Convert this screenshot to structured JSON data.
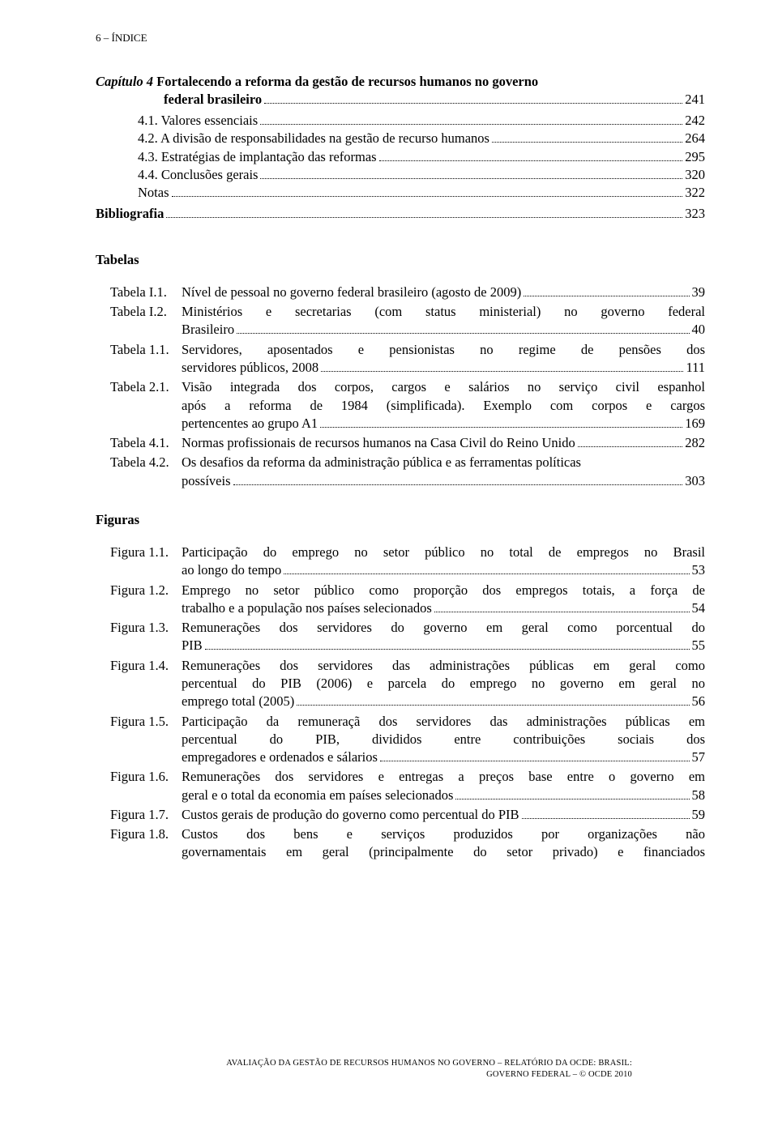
{
  "header": "6 – ÍNDICE",
  "chapter": {
    "lead": "Capítulo 4 ",
    "title_part1": "Fortalecendo a reforma da gestão de recursos humanos no governo",
    "title_part2": "federal brasileiro",
    "page": "241"
  },
  "sections": [
    {
      "label": "4.1. Valores essenciais",
      "page": "242"
    },
    {
      "label": "4.2. A divisão de responsabilidades na gestão de recurso humanos",
      "page": "264"
    },
    {
      "label": "4.3. Estratégias de implantação das reformas",
      "page": "295"
    },
    {
      "label": "4.4. Conclusões gerais",
      "page": "320"
    },
    {
      "label": "Notas",
      "page": "322"
    }
  ],
  "biblio": {
    "label": "Bibliografia",
    "page": "323"
  },
  "tabelas_heading": "Tabelas",
  "tabelas": [
    {
      "label": "Tabela I.1.",
      "lines": [
        "Nível de pessoal no governo federal brasileiro (agosto de 2009)"
      ],
      "page": "39"
    },
    {
      "label": "Tabela I.2.",
      "lines": [
        "Ministérios e secretarias (com status ministerial) no governo federal",
        "Brasileiro"
      ],
      "page": "40",
      "justify_first": true
    },
    {
      "label": "Tabela 1.1.",
      "lines": [
        "Servidores, aposentados e pensionistas no regime de pensões dos",
        "servidores públicos, 2008"
      ],
      "page": "111",
      "justify_first": true
    },
    {
      "label": "Tabela 2.1.",
      "lines": [
        "Visão integrada dos corpos, cargos e salários no serviço civil espanhol",
        "após a reforma de 1984 (simplificada). Exemplo com corpos e cargos",
        "pertencentes ao grupo A1"
      ],
      "page": "169",
      "justify_first": true,
      "justify_mid": true
    },
    {
      "label": "Tabela 4.1.",
      "lines": [
        "Normas profissionais de recursos humanos na Casa Civil do Reino Unido"
      ],
      "page": "282"
    },
    {
      "label": "Tabela 4.2.",
      "lines": [
        "Os desafios da reforma da administração pública e as ferramentas políticas",
        "possíveis"
      ],
      "page": "303"
    }
  ],
  "figuras_heading": "Figuras",
  "figuras": [
    {
      "label": "Figura 1.1.",
      "lines": [
        "Participação do emprego no setor público no total de empregos no Brasil",
        "ao longo do tempo"
      ],
      "page": "53",
      "justify_first": true
    },
    {
      "label": "Figura 1.2.",
      "lines": [
        "Emprego no setor público como proporção dos empregos totais, a força de",
        "trabalho e a população nos países selecionados"
      ],
      "page": "54",
      "justify_first": true
    },
    {
      "label": "Figura 1.3.",
      "lines": [
        "Remunerações dos servidores do governo em geral como porcentual do",
        "PIB"
      ],
      "page": "55",
      "justify_first": true
    },
    {
      "label": "Figura 1.4.",
      "lines": [
        "Remunerações dos servidores das administrações públicas em geral como",
        "percentual do PIB (2006) e parcela do emprego no governo em geral no",
        "emprego total (2005)"
      ],
      "page": "56",
      "justify_first": true,
      "justify_mid": true
    },
    {
      "label": "Figura 1.5.",
      "lines": [
        "Participação da remuneraçã dos servidores das administrações públicas em",
        "percentual do PIB, divididos entre contribuições sociais dos",
        "empregadores e ordenados e sálarios"
      ],
      "page": "57",
      "justify_first": true,
      "justify_mid": true
    },
    {
      "label": "Figura 1.6.",
      "lines": [
        "Remunerações dos servidores e entregas a preços base entre o governo em",
        "geral e o total da economia em países selecionados"
      ],
      "page": "58",
      "justify_first": true
    },
    {
      "label": "Figura 1.7.",
      "lines": [
        "Custos gerais de produção do governo como percentual do PIB"
      ],
      "page": "59"
    },
    {
      "label": "Figura 1.8.",
      "lines": [
        "Custos dos bens e serviços produzidos por organizações não",
        "governamentais em geral (principalmente do setor privado) e financiados"
      ],
      "page": "",
      "justify_first": true,
      "justify_mid": true,
      "no_leader": true
    }
  ],
  "footer": "AVALIAÇÃO DA GESTÃO DE RECURSOS HUMANOS NO GOVERNO – RELATÓRIO DA OCDE: BRASIL: GOVERNO FEDERAL – © OCDE 2010"
}
